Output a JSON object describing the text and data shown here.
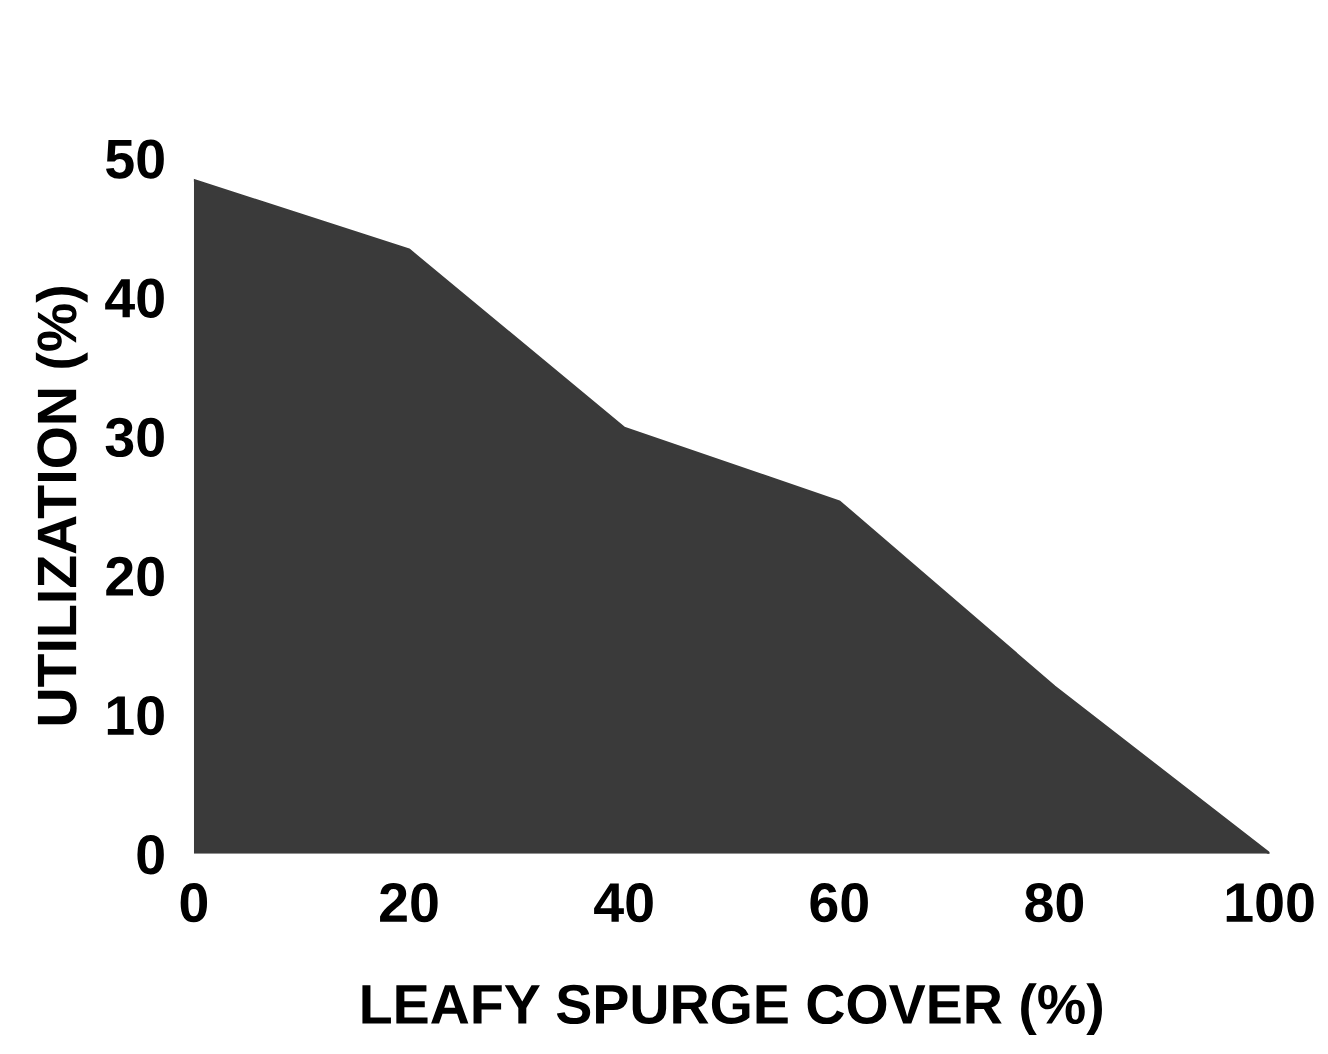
{
  "chart_data": {
    "type": "area",
    "xlabel": "LEAFY SPURGE COVER (%)",
    "ylabel": "UTILIZATION (%)",
    "x": [
      0,
      20,
      40,
      60,
      80,
      100
    ],
    "series": [
      {
        "color": "#3a3a3a",
        "values": [
          48.4,
          43.4,
          30.6,
          25.3,
          12,
          0
        ]
      }
    ],
    "xlim": [
      0,
      100
    ],
    "ylim": [
      0,
      50
    ],
    "xticks": [
      0,
      20,
      40,
      60,
      80,
      100
    ],
    "yticks": [
      0,
      10,
      20,
      30,
      40,
      50
    ],
    "grid": false
  }
}
